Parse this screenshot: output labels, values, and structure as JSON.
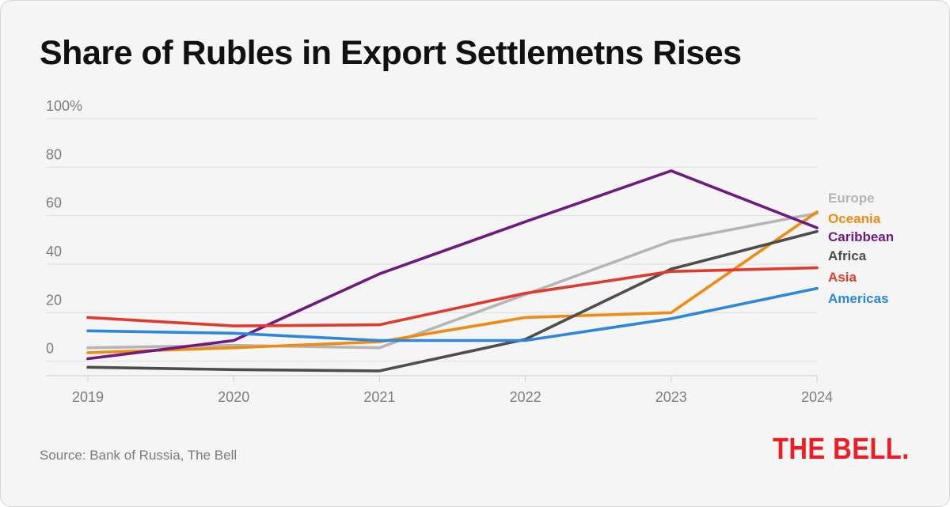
{
  "title": "Share of Rubles in Export Settlemetns Rises",
  "source": "Source: Bank of Russia, The Bell",
  "logo": {
    "text": "THE BELL.",
    "color": "#ee1c24"
  },
  "chart_data": {
    "type": "line",
    "title": "Share of Rubles in Export Settlemetns Rises",
    "xlabel": "",
    "ylabel": "",
    "x": [
      "2019",
      "2020",
      "2021",
      "2022",
      "2023",
      "2024"
    ],
    "yticks": [
      {
        "value": 100,
        "label": "100%"
      },
      {
        "value": 80,
        "label": "80"
      },
      {
        "value": 60,
        "label": "60"
      },
      {
        "value": 40,
        "label": "40"
      },
      {
        "value": 20,
        "label": "20"
      },
      {
        "value": 0,
        "label": "0"
      }
    ],
    "ylim": [
      -6,
      100
    ],
    "grid": true,
    "legend": "right, labels at line ends",
    "series": [
      {
        "name": "Europe",
        "color": "#b5b5b5",
        "values": [
          5.5,
          6.5,
          5.5,
          27.5,
          49.5,
          61
        ]
      },
      {
        "name": "Oceania",
        "color": "#ef8a12",
        "values": [
          3.5,
          5.5,
          8,
          18,
          20,
          61.5
        ]
      },
      {
        "name": "Caribbean",
        "color": "#6e1a7e",
        "values": [
          1,
          8.5,
          36,
          57.5,
          78.5,
          55
        ]
      },
      {
        "name": "Africa",
        "color": "#4d4d4d",
        "values": [
          -2.5,
          -3.5,
          -4,
          9,
          38,
          53.5
        ]
      },
      {
        "name": "Asia",
        "color": "#e13a2a",
        "values": [
          18,
          14.5,
          15,
          28,
          37,
          38.5
        ]
      },
      {
        "name": "Americas",
        "color": "#2b86e0",
        "values": [
          12.5,
          11.5,
          8.5,
          8.5,
          17.5,
          30
        ]
      }
    ]
  }
}
